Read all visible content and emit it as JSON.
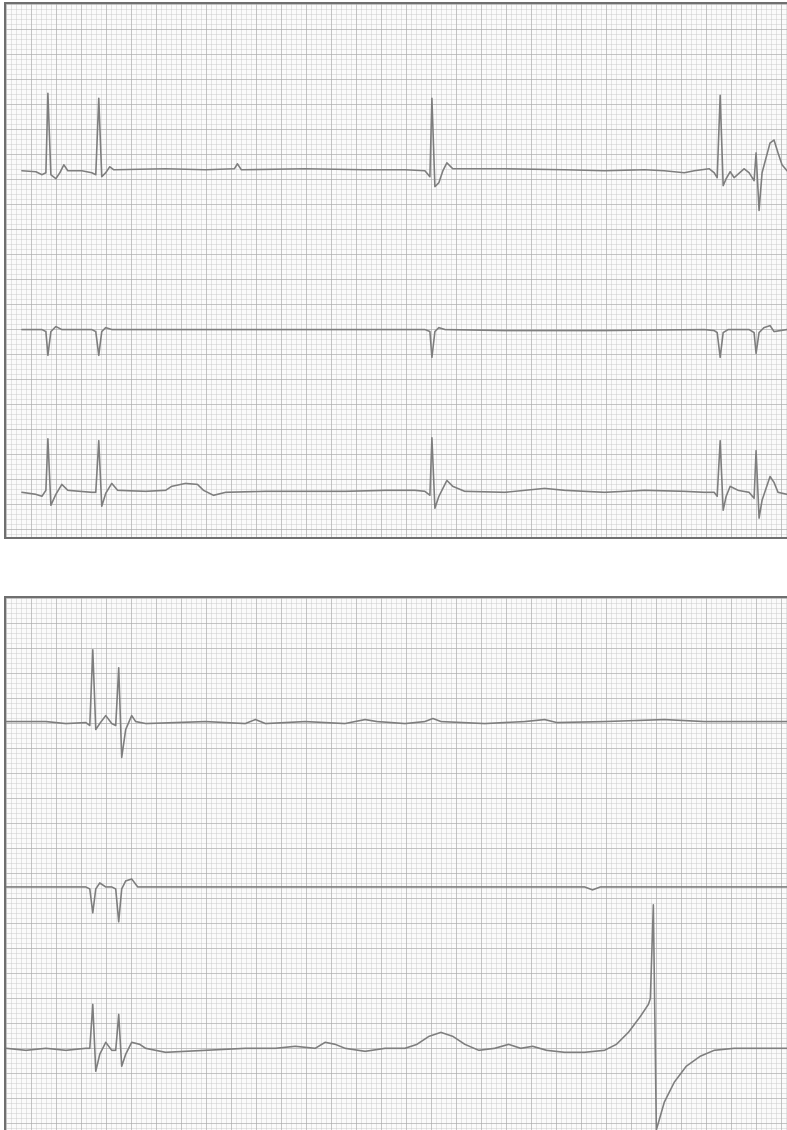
{
  "figure": {
    "description_visible_text": "",
    "panels": [
      {
        "id": "top",
        "leads": 3
      },
      {
        "id": "bottom",
        "leads": 3
      }
    ],
    "colors": {
      "trace": "#7e7e7e",
      "grid_major": "#aaaaaa",
      "grid_minor": "#c8c8c8",
      "border": "#6f6f6f",
      "paper": "#fbfbfb"
    }
  }
}
